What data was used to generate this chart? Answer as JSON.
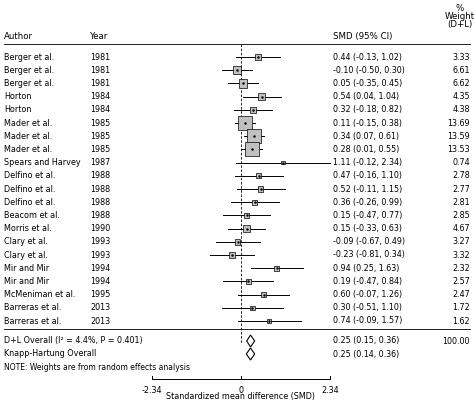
{
  "studies": [
    {
      "author": "Berger et al.",
      "year": "1981",
      "smd": 0.44,
      "ci_low": -0.13,
      "ci_high": 1.02,
      "weight": 3.33
    },
    {
      "author": "Berger et al.",
      "year": "1981",
      "smd": -0.1,
      "ci_low": -0.5,
      "ci_high": 0.3,
      "weight": 6.61
    },
    {
      "author": "Berger et al.",
      "year": "1981",
      "smd": 0.05,
      "ci_low": -0.35,
      "ci_high": 0.45,
      "weight": 6.62
    },
    {
      "author": "Horton",
      "year": "1984",
      "smd": 0.54,
      "ci_low": 0.04,
      "ci_high": 1.04,
      "weight": 4.35
    },
    {
      "author": "Horton",
      "year": "1984",
      "smd": 0.32,
      "ci_low": -0.18,
      "ci_high": 0.82,
      "weight": 4.38
    },
    {
      "author": "Mader et al.",
      "year": "1985",
      "smd": 0.11,
      "ci_low": -0.15,
      "ci_high": 0.38,
      "weight": 13.69
    },
    {
      "author": "Mader et al.",
      "year": "1985",
      "smd": 0.34,
      "ci_low": 0.07,
      "ci_high": 0.61,
      "weight": 13.59
    },
    {
      "author": "Mader et al.",
      "year": "1985",
      "smd": 0.28,
      "ci_low": 0.01,
      "ci_high": 0.55,
      "weight": 13.53
    },
    {
      "author": "Spears and Harvey",
      "year": "1987",
      "smd": 1.11,
      "ci_low": -0.12,
      "ci_high": 2.34,
      "weight": 0.74
    },
    {
      "author": "Delfino et al.",
      "year": "1988",
      "smd": 0.47,
      "ci_low": -0.16,
      "ci_high": 1.1,
      "weight": 2.78
    },
    {
      "author": "Delfino et al.",
      "year": "1988",
      "smd": 0.52,
      "ci_low": -0.11,
      "ci_high": 1.15,
      "weight": 2.77
    },
    {
      "author": "Delfino et al.",
      "year": "1988",
      "smd": 0.36,
      "ci_low": -0.26,
      "ci_high": 0.99,
      "weight": 2.81
    },
    {
      "author": "Beacom et al.",
      "year": "1988",
      "smd": 0.15,
      "ci_low": -0.47,
      "ci_high": 0.77,
      "weight": 2.85
    },
    {
      "author": "Morris et al.",
      "year": "1990",
      "smd": 0.15,
      "ci_low": -0.33,
      "ci_high": 0.63,
      "weight": 4.67
    },
    {
      "author": "Clary et al.",
      "year": "1993",
      "smd": -0.09,
      "ci_low": -0.67,
      "ci_high": 0.49,
      "weight": 3.27
    },
    {
      "author": "Clary et al.",
      "year": "1993",
      "smd": -0.23,
      "ci_low": -0.81,
      "ci_high": 0.34,
      "weight": 3.32
    },
    {
      "author": "Mir and Mir",
      "year": "1994",
      "smd": 0.94,
      "ci_low": 0.25,
      "ci_high": 1.63,
      "weight": 2.32
    },
    {
      "author": "Mir and Mir",
      "year": "1994",
      "smd": 0.19,
      "ci_low": -0.47,
      "ci_high": 0.84,
      "weight": 2.57
    },
    {
      "author": "McMeniman et al.",
      "year": "1995",
      "smd": 0.6,
      "ci_low": -0.07,
      "ci_high": 1.26,
      "weight": 2.47
    },
    {
      "author": "Barreras et al.",
      "year": "2013",
      "smd": 0.3,
      "ci_low": -0.51,
      "ci_high": 1.1,
      "weight": 1.72
    },
    {
      "author": "Barreras et al.",
      "year": "2013",
      "smd": 0.74,
      "ci_low": -0.09,
      "ci_high": 1.57,
      "weight": 1.62
    }
  ],
  "overall_dl": {
    "smd": 0.25,
    "ci_low": 0.15,
    "ci_high": 0.36,
    "weight": 100.0
  },
  "overall_kh": {
    "smd": 0.25,
    "ci_low": 0.14,
    "ci_high": 0.36
  },
  "overall_dl_label": "D+L Overall (I² = 4.4%, P = 0.401)",
  "overall_kh_label": "Knapp-Hartung Overall",
  "note": "NOTE: Weights are from random effects analysis",
  "xlabel": "Standardized mean difference (SMD)",
  "xlim": [
    -2.34,
    2.34
  ],
  "xticks": [
    -2.34,
    0,
    2.34
  ],
  "col_author": "Author",
  "col_year": "Year",
  "col_smd": "SMD (95% CI)",
  "col_weight_pct": "%",
  "col_weight_line2": "Weight",
  "col_weight_line3": "(D+L)",
  "bg_color": "#ffffff",
  "box_color": "#c0c0c0",
  "line_color": "#000000",
  "text_fontsize": 5.8,
  "header_fontsize": 6.2,
  "figwidth": 4.74,
  "figheight": 4.17,
  "dpi": 100
}
